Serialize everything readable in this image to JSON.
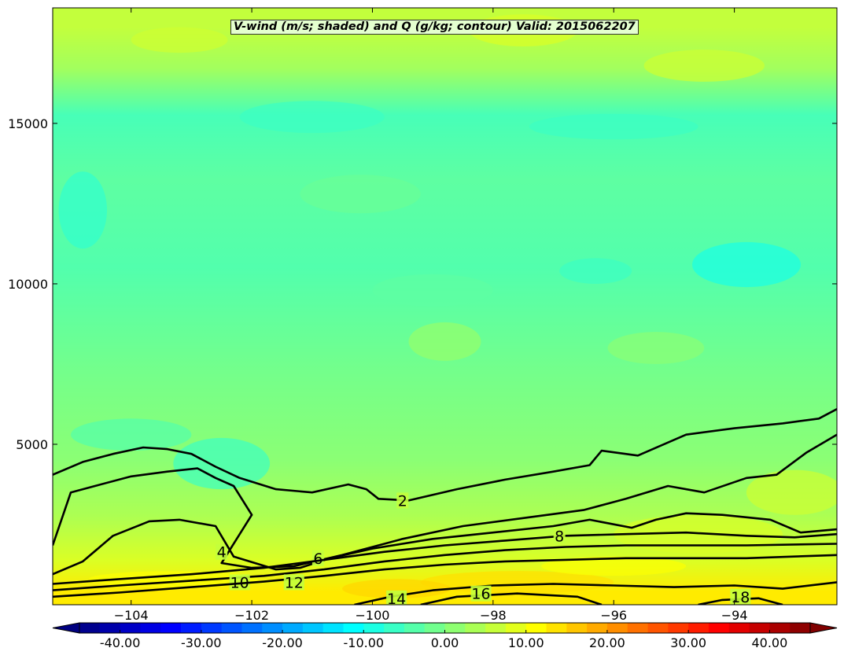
{
  "chart_data": {
    "type": "heatmap",
    "title": "V-wind (m/s; shaded) and Q (g/kg; contour) Valid: 2015062207",
    "xlabel": "",
    "ylabel": "",
    "xlim": [
      -105.3,
      -92.3
    ],
    "ylim": [
      0,
      18600
    ],
    "x_ticks": [
      -104,
      -102,
      -100,
      -98,
      -96,
      -94
    ],
    "x_tick_labels": [
      "−104",
      "−102",
      "−100",
      "−98",
      "−96",
      "−94"
    ],
    "y_ticks": [
      5000,
      10000,
      15000
    ],
    "y_tick_labels": [
      "5000",
      "10000",
      "15000"
    ],
    "shaded_field": "V-wind (m/s)",
    "colorbar": {
      "min": -45,
      "max": 45,
      "step": 2.5,
      "extend": "both",
      "ticks": [
        -40,
        -30,
        -20,
        -10,
        0,
        10,
        20,
        30,
        40
      ],
      "tick_labels": [
        "-40.00",
        "-30.00",
        "-20.00",
        "-10.00",
        "0.00",
        "10.00",
        "20.00",
        "30.00",
        "40.00"
      ],
      "colormap": "jet"
    },
    "shading_bands": [
      {
        "y_top": 18600,
        "y_bottom": 17400,
        "v_wind": 6
      },
      {
        "y_top": 17400,
        "y_bottom": 16000,
        "v_wind": 3
      },
      {
        "y_top": 16000,
        "y_bottom": 14500,
        "v_wind": -5
      },
      {
        "y_top": 14500,
        "y_bottom": 12000,
        "v_wind": -3
      },
      {
        "y_top": 12000,
        "y_bottom": 9000,
        "v_wind": -4
      },
      {
        "y_top": 9000,
        "y_bottom": 5500,
        "v_wind": -1
      },
      {
        "y_top": 5500,
        "y_bottom": 3500,
        "v_wind": 1
      },
      {
        "y_top": 3500,
        "y_bottom": 2000,
        "v_wind": 4
      },
      {
        "y_top": 2000,
        "y_bottom": 800,
        "v_wind": 8
      },
      {
        "y_top": 800,
        "y_bottom": 0,
        "v_wind": 13
      }
    ],
    "contour_field": "Q (g/kg)",
    "contours": [
      {
        "level": 2,
        "label": "2",
        "points": [
          [
            -105.3,
            4050
          ],
          [
            -104.8,
            4450
          ],
          [
            -104.3,
            4700
          ],
          [
            -103.8,
            4900
          ],
          [
            -103.4,
            4850
          ],
          [
            -103.0,
            4700
          ],
          [
            -102.6,
            4300
          ],
          [
            -102.2,
            3950
          ],
          [
            -101.6,
            3600
          ],
          [
            -101.0,
            3500
          ],
          [
            -100.4,
            3750
          ],
          [
            -100.1,
            3600
          ],
          [
            -99.9,
            3300
          ],
          [
            -99.4,
            3250
          ],
          [
            -98.6,
            3600
          ],
          [
            -97.8,
            3900
          ],
          [
            -97.0,
            4150
          ],
          [
            -96.4,
            4350
          ],
          [
            -96.2,
            4800
          ],
          [
            -95.6,
            4650
          ],
          [
            -94.8,
            5300
          ],
          [
            -94.0,
            5500
          ],
          [
            -93.2,
            5650
          ],
          [
            -92.6,
            5800
          ],
          [
            -92.3,
            6100
          ]
        ],
        "label_at": [
          -99.5,
          3250
        ]
      },
      {
        "level": 4,
        "label": "4",
        "points": [
          [
            -105.3,
            1850
          ],
          [
            -105.0,
            3500
          ],
          [
            -104.6,
            3700
          ],
          [
            -104.0,
            4000
          ],
          [
            -103.4,
            4150
          ],
          [
            -102.9,
            4250
          ],
          [
            -102.6,
            3950
          ],
          [
            -102.3,
            3700
          ],
          [
            -102.0,
            2800
          ],
          [
            -102.4,
            1600
          ],
          [
            -102.5,
            1300
          ],
          [
            -102.0,
            1150
          ],
          [
            -101.3,
            1200
          ],
          [
            -100.5,
            1550
          ],
          [
            -99.5,
            2050
          ],
          [
            -98.5,
            2450
          ],
          [
            -97.5,
            2700
          ],
          [
            -96.5,
            2950
          ],
          [
            -95.8,
            3300
          ],
          [
            -95.1,
            3700
          ],
          [
            -94.5,
            3500
          ],
          [
            -93.8,
            3950
          ],
          [
            -93.3,
            4050
          ],
          [
            -92.8,
            4750
          ],
          [
            -92.3,
            5300
          ]
        ],
        "label_at": [
          -102.5,
          1650
        ]
      },
      {
        "level": 6,
        "label": "6",
        "points": [
          [
            -105.3,
            950
          ],
          [
            -104.8,
            1350
          ],
          [
            -104.3,
            2150
          ],
          [
            -103.7,
            2600
          ],
          [
            -103.2,
            2650
          ],
          [
            -102.6,
            2450
          ],
          [
            -102.3,
            1500
          ],
          [
            -101.6,
            1100
          ],
          [
            -101.2,
            1150
          ],
          [
            -100.7,
            1450
          ],
          [
            -100.0,
            1750
          ],
          [
            -99.0,
            2050
          ],
          [
            -98.0,
            2250
          ],
          [
            -97.0,
            2450
          ],
          [
            -96.4,
            2650
          ],
          [
            -95.7,
            2400
          ],
          [
            -95.3,
            2650
          ],
          [
            -94.8,
            2850
          ],
          [
            -94.2,
            2800
          ],
          [
            -93.4,
            2650
          ],
          [
            -92.9,
            2250
          ],
          [
            -92.3,
            2350
          ]
        ],
        "label_at": [
          -100.9,
          1450
        ]
      },
      {
        "level": 8,
        "label": "8",
        "points": [
          [
            -105.3,
            650
          ],
          [
            -104.2,
            800
          ],
          [
            -103.0,
            950
          ],
          [
            -101.8,
            1150
          ],
          [
            -100.8,
            1400
          ],
          [
            -99.8,
            1650
          ],
          [
            -98.8,
            1850
          ],
          [
            -97.8,
            2000
          ],
          [
            -96.8,
            2150
          ],
          [
            -95.8,
            2200
          ],
          [
            -94.8,
            2250
          ],
          [
            -93.8,
            2150
          ],
          [
            -93.0,
            2100
          ],
          [
            -92.3,
            2200
          ]
        ],
        "label_at": [
          -96.9,
          2150
        ]
      },
      {
        "level": 10,
        "label": "10",
        "points": [
          [
            -105.3,
            450
          ],
          [
            -104.2,
            600
          ],
          [
            -103.0,
            750
          ],
          [
            -101.8,
            900
          ],
          [
            -100.8,
            1100
          ],
          [
            -99.8,
            1350
          ],
          [
            -98.8,
            1550
          ],
          [
            -97.8,
            1700
          ],
          [
            -96.8,
            1800
          ],
          [
            -95.8,
            1850
          ],
          [
            -94.8,
            1850
          ],
          [
            -93.8,
            1850
          ],
          [
            -92.3,
            1900
          ]
        ],
        "label_at": [
          -102.2,
          700
        ]
      },
      {
        "level": 12,
        "label": "12",
        "points": [
          [
            -105.3,
            250
          ],
          [
            -104.2,
            380
          ],
          [
            -103.0,
            550
          ],
          [
            -101.8,
            720
          ],
          [
            -100.8,
            900
          ],
          [
            -99.8,
            1100
          ],
          [
            -98.8,
            1250
          ],
          [
            -97.8,
            1350
          ],
          [
            -96.8,
            1400
          ],
          [
            -95.8,
            1450
          ],
          [
            -94.8,
            1450
          ],
          [
            -93.8,
            1450
          ],
          [
            -92.3,
            1550
          ]
        ],
        "label_at": [
          -101.3,
          700
        ]
      },
      {
        "level": 14,
        "label": "14",
        "points": [
          [
            -100.3,
            0
          ],
          [
            -99.7,
            250
          ],
          [
            -99.0,
            450
          ],
          [
            -98.0,
            600
          ],
          [
            -97.0,
            650
          ],
          [
            -96.0,
            600
          ],
          [
            -95.0,
            550
          ],
          [
            -94.0,
            600
          ],
          [
            -93.2,
            500
          ],
          [
            -92.3,
            700
          ]
        ],
        "label_at": [
          -99.6,
          200
        ]
      },
      {
        "level": 16,
        "label": "16",
        "points": [
          [
            -99.2,
            0
          ],
          [
            -98.6,
            250
          ],
          [
            -97.6,
            350
          ],
          [
            -96.6,
            250
          ],
          [
            -96.2,
            0
          ]
        ],
        "label_at": [
          -98.2,
          350
        ]
      },
      {
        "level": 18,
        "label": "18",
        "points": [
          [
            -94.6,
            0
          ],
          [
            -94.2,
            150
          ],
          [
            -93.6,
            200
          ],
          [
            -93.2,
            0
          ]
        ],
        "label_at": [
          -93.9,
          250
        ]
      }
    ]
  }
}
